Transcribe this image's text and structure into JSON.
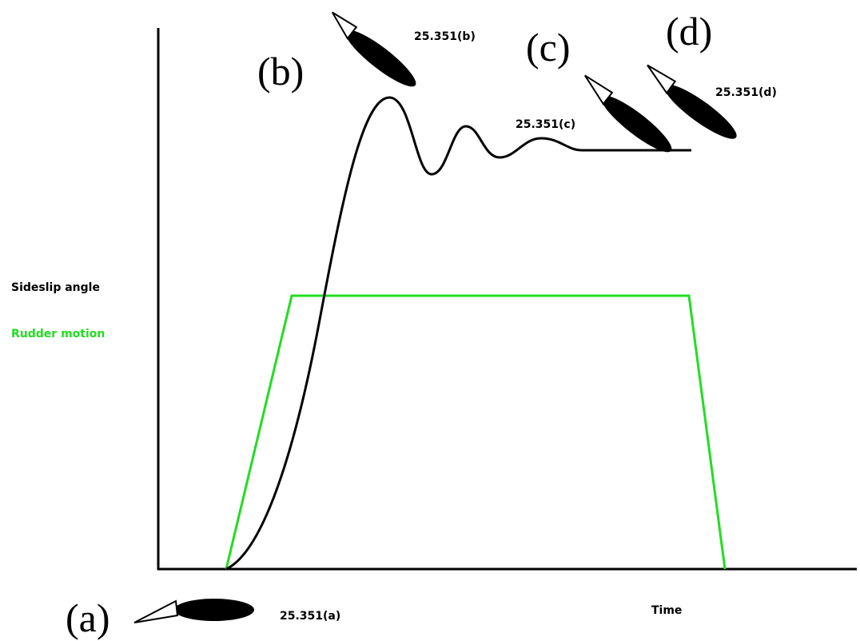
{
  "legend": {
    "items": [
      {
        "label": "Sideslip angle",
        "color": "#000000"
      },
      {
        "label": "Rudder motion",
        "color": "#22dd22"
      }
    ]
  },
  "axis": {
    "x_label": "Time"
  },
  "stages": [
    {
      "letter": "(a)",
      "code": "25.351(a)"
    },
    {
      "letter": "(b)",
      "code": "25.351(b)"
    },
    {
      "letter": "(c)",
      "code": "25.351(c)"
    },
    {
      "letter": "(d)",
      "code": "25.351(d)"
    }
  ]
}
